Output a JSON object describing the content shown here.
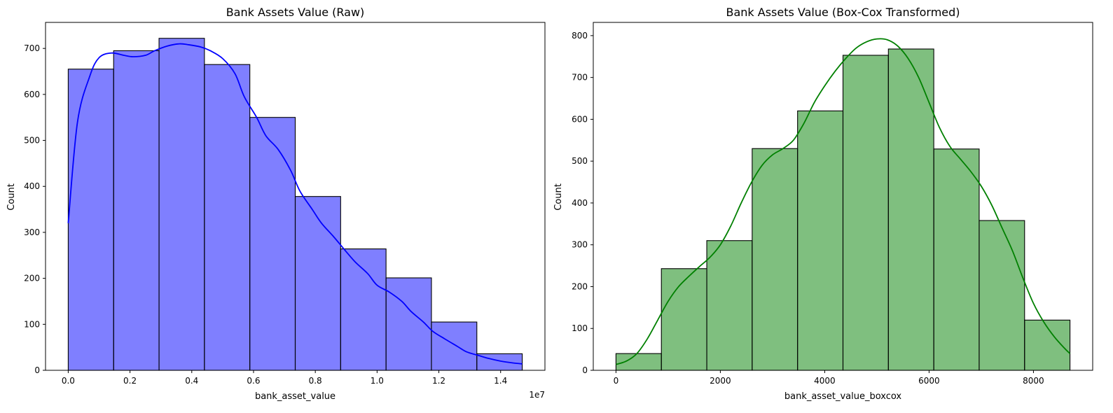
{
  "chart_data": [
    {
      "type": "bar",
      "title": "Bank Assets Value (Raw)",
      "xlabel": "bank_asset_value",
      "ylabel": "Count",
      "x_offset_text": "1e7",
      "color": "#0000ff",
      "fill_alpha": 0.5,
      "xlim": [
        -0.0735,
        1.5435
      ],
      "ylim": [
        0,
        756.6
      ],
      "x_ticks": [
        0.0,
        0.2,
        0.4,
        0.6,
        0.8,
        1.0,
        1.2,
        1.4
      ],
      "x_tick_labels": [
        "0.0",
        "0.2",
        "0.4",
        "0.6",
        "0.8",
        "1.0",
        "1.2",
        "1.4"
      ],
      "y_ticks": [
        0,
        100,
        200,
        300,
        400,
        500,
        600,
        700
      ],
      "y_tick_labels": [
        "0",
        "100",
        "200",
        "300",
        "400",
        "500",
        "600",
        "700"
      ],
      "bin_edges": [
        0.0,
        0.147,
        0.294,
        0.441,
        0.588,
        0.735,
        0.882,
        1.029,
        1.176,
        1.323,
        1.47
      ],
      "counts": [
        655,
        695,
        722,
        665,
        550,
        378,
        264,
        201,
        105,
        36
      ],
      "kde": {
        "x": [
          0.0,
          0.03,
          0.07,
          0.1,
          0.14,
          0.18,
          0.21,
          0.25,
          0.28,
          0.32,
          0.36,
          0.39,
          0.43,
          0.46,
          0.5,
          0.54,
          0.57,
          0.61,
          0.64,
          0.68,
          0.72,
          0.75,
          0.79,
          0.82,
          0.86,
          0.9,
          0.93,
          0.97,
          1.0,
          1.04,
          1.08,
          1.11,
          1.15,
          1.18,
          1.22,
          1.26,
          1.29,
          1.33,
          1.36,
          1.4,
          1.44,
          1.47
        ],
        "y": [
          320,
          540,
          640,
          680,
          690,
          685,
          682,
          685,
          695,
          705,
          710,
          708,
          703,
          695,
          678,
          645,
          595,
          550,
          510,
          480,
          435,
          390,
          350,
          320,
          290,
          258,
          235,
          210,
          185,
          170,
          150,
          128,
          105,
          85,
          68,
          52,
          40,
          32,
          26,
          20,
          16,
          14
        ]
      }
    },
    {
      "type": "bar",
      "title": "Bank Assets Value (Box-Cox Transformed)",
      "xlabel": "bank_asset_value_boxcox",
      "ylabel": "Count",
      "color": "#008000",
      "fill_alpha": 0.5,
      "xlim": [
        -435,
        9135
      ],
      "ylim": [
        0,
        831.6
      ],
      "x_ticks": [
        0,
        2000,
        4000,
        6000,
        8000
      ],
      "x_tick_labels": [
        "0",
        "2000",
        "4000",
        "6000",
        "8000"
      ],
      "y_ticks": [
        0,
        100,
        200,
        300,
        400,
        500,
        600,
        700,
        800
      ],
      "y_tick_labels": [
        "0",
        "100",
        "200",
        "300",
        "400",
        "500",
        "600",
        "700",
        "800"
      ],
      "bin_edges": [
        0,
        870,
        1740,
        2610,
        3480,
        4350,
        5220,
        6090,
        6960,
        7830,
        8700
      ],
      "counts": [
        40,
        243,
        310,
        530,
        620,
        753,
        768,
        529,
        358,
        120
      ],
      "kde": {
        "x": [
          0,
          200,
          400,
          600,
          800,
          1000,
          1200,
          1400,
          1600,
          1800,
          2000,
          2200,
          2400,
          2600,
          2800,
          3000,
          3200,
          3400,
          3600,
          3800,
          4000,
          4200,
          4400,
          4600,
          4800,
          5000,
          5200,
          5400,
          5600,
          5800,
          6000,
          6200,
          6400,
          6600,
          6800,
          7000,
          7200,
          7400,
          7600,
          7800,
          8000,
          8200,
          8400,
          8600,
          8700
        ],
        "y": [
          14,
          22,
          40,
          75,
          120,
          165,
          200,
          225,
          248,
          270,
          300,
          345,
          400,
          450,
          490,
          515,
          530,
          550,
          590,
          640,
          680,
          715,
          745,
          770,
          785,
          792,
          790,
          775,
          745,
          700,
          640,
          580,
          535,
          505,
          475,
          440,
          395,
          340,
          285,
          220,
          160,
          115,
          80,
          52,
          40
        ]
      }
    }
  ]
}
